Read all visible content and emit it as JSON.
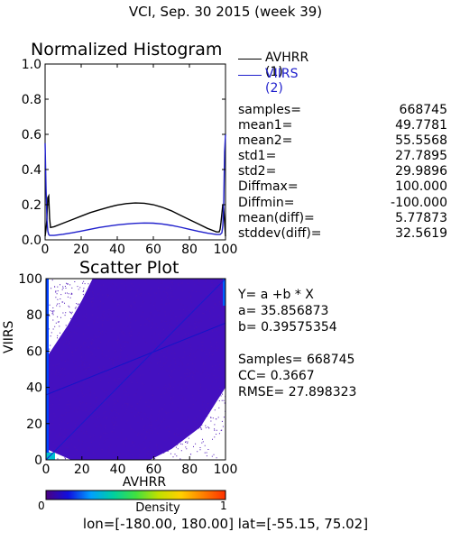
{
  "title": "VCI,  Sep. 30 2015 (week 39)",
  "colors": {
    "series1": "#000000",
    "series2": "#1f1fcc",
    "regression": "#1414c8"
  },
  "chart_data": [
    {
      "type": "line",
      "title": "Normalized Histogram",
      "xlim": [
        0,
        100
      ],
      "ylim": [
        0,
        1
      ],
      "xticks": [
        0,
        20,
        40,
        60,
        80,
        100
      ],
      "xtick_labels": [
        "0",
        "20",
        "40",
        "60",
        "80",
        "100"
      ],
      "yticks": [
        0,
        0.2,
        0.4,
        0.6,
        0.8,
        1.0
      ],
      "ytick_labels": [
        "0.0",
        "0.2",
        "0.4",
        "0.6",
        "0.8",
        "1.0"
      ],
      "legend_position": "right",
      "series": [
        {
          "name": "AVHRR (1)",
          "color": "#000000",
          "x": [
            0,
            0.5,
            1,
            1.5,
            2,
            2.5,
            3,
            5,
            10,
            15,
            20,
            25,
            30,
            35,
            40,
            45,
            50,
            55,
            60,
            65,
            70,
            75,
            80,
            85,
            90,
            95,
            96.5,
            97,
            97.5,
            98,
            98.5,
            99,
            99.5,
            100
          ],
          "y": [
            0.02,
            0.06,
            0.12,
            0.24,
            0.25,
            0.12,
            0.07,
            0.075,
            0.095,
            0.115,
            0.135,
            0.155,
            0.17,
            0.185,
            0.198,
            0.206,
            0.21,
            0.208,
            0.2,
            0.185,
            0.165,
            0.14,
            0.115,
            0.09,
            0.065,
            0.045,
            0.045,
            0.06,
            0.1,
            0.15,
            0.2,
            0.18,
            0.1,
            0.02
          ]
        },
        {
          "name": "VIIRS (2)",
          "color": "#1f1fcc",
          "x": [
            0,
            0.5,
            1,
            1.5,
            2,
            2.5,
            3,
            5,
            10,
            15,
            20,
            25,
            30,
            35,
            40,
            45,
            50,
            55,
            60,
            65,
            70,
            75,
            80,
            85,
            90,
            95,
            97,
            98,
            98.5,
            99,
            99.5,
            100
          ],
          "y": [
            0.55,
            0.3,
            0.12,
            0.05,
            0.03,
            0.025,
            0.025,
            0.025,
            0.032,
            0.04,
            0.05,
            0.06,
            0.07,
            0.078,
            0.085,
            0.09,
            0.094,
            0.096,
            0.095,
            0.09,
            0.082,
            0.072,
            0.06,
            0.048,
            0.038,
            0.03,
            0.03,
            0.04,
            0.08,
            0.2,
            0.5,
            0.6
          ]
        }
      ]
    },
    {
      "type": "scatter",
      "title": "Scatter Plot",
      "xlabel": "AVHRR",
      "ylabel": "VIIRS",
      "xlim": [
        0,
        100
      ],
      "ylim": [
        0,
        100
      ],
      "xticks": [
        0,
        20,
        40,
        60,
        80,
        100
      ],
      "xtick_labels": [
        "0",
        "20",
        "40",
        "60",
        "80",
        "100"
      ],
      "yticks": [
        0,
        20,
        40,
        60,
        80,
        100
      ],
      "ytick_labels": [
        "0",
        "20",
        "40",
        "60",
        "80",
        "100"
      ],
      "regression": {
        "intercept": 35.856873,
        "slope": 0.39575354
      },
      "colorbar": {
        "label": "Density",
        "min_label": "0",
        "max_label": "1",
        "colors": [
          "#4b0082",
          "#1010e0",
          "#00a0ff",
          "#00d0a0",
          "#40e040",
          "#c0e000",
          "#ffd000",
          "#ff8000",
          "#ff3000"
        ]
      }
    }
  ],
  "stats": [
    {
      "key": "samples=",
      "value": "668745"
    },
    {
      "key": "mean1=",
      "value": "49.7781"
    },
    {
      "key": "mean2=",
      "value": "55.5568"
    },
    {
      "key": "std1=",
      "value": "27.7895"
    },
    {
      "key": "std2=",
      "value": "29.9896"
    },
    {
      "key": "Diffmax=",
      "value": "100.000"
    },
    {
      "key": "Diffmin=",
      "value": "-100.000"
    },
    {
      "key": "mean(diff)=",
      "value": "5.77873"
    },
    {
      "key": "stddev(diff)=",
      "value": "32.5619"
    }
  ],
  "fit": {
    "equation": "Y= a +b * X",
    "a": "a= 35.856873",
    "b": "b= 0.39575354",
    "samples": "Samples= 668745",
    "cc": "CC=  0.3667",
    "rmse": "RMSE= 27.898323"
  },
  "region": "lon=[-180.00, 180.00] lat=[-55.15, 75.02]"
}
